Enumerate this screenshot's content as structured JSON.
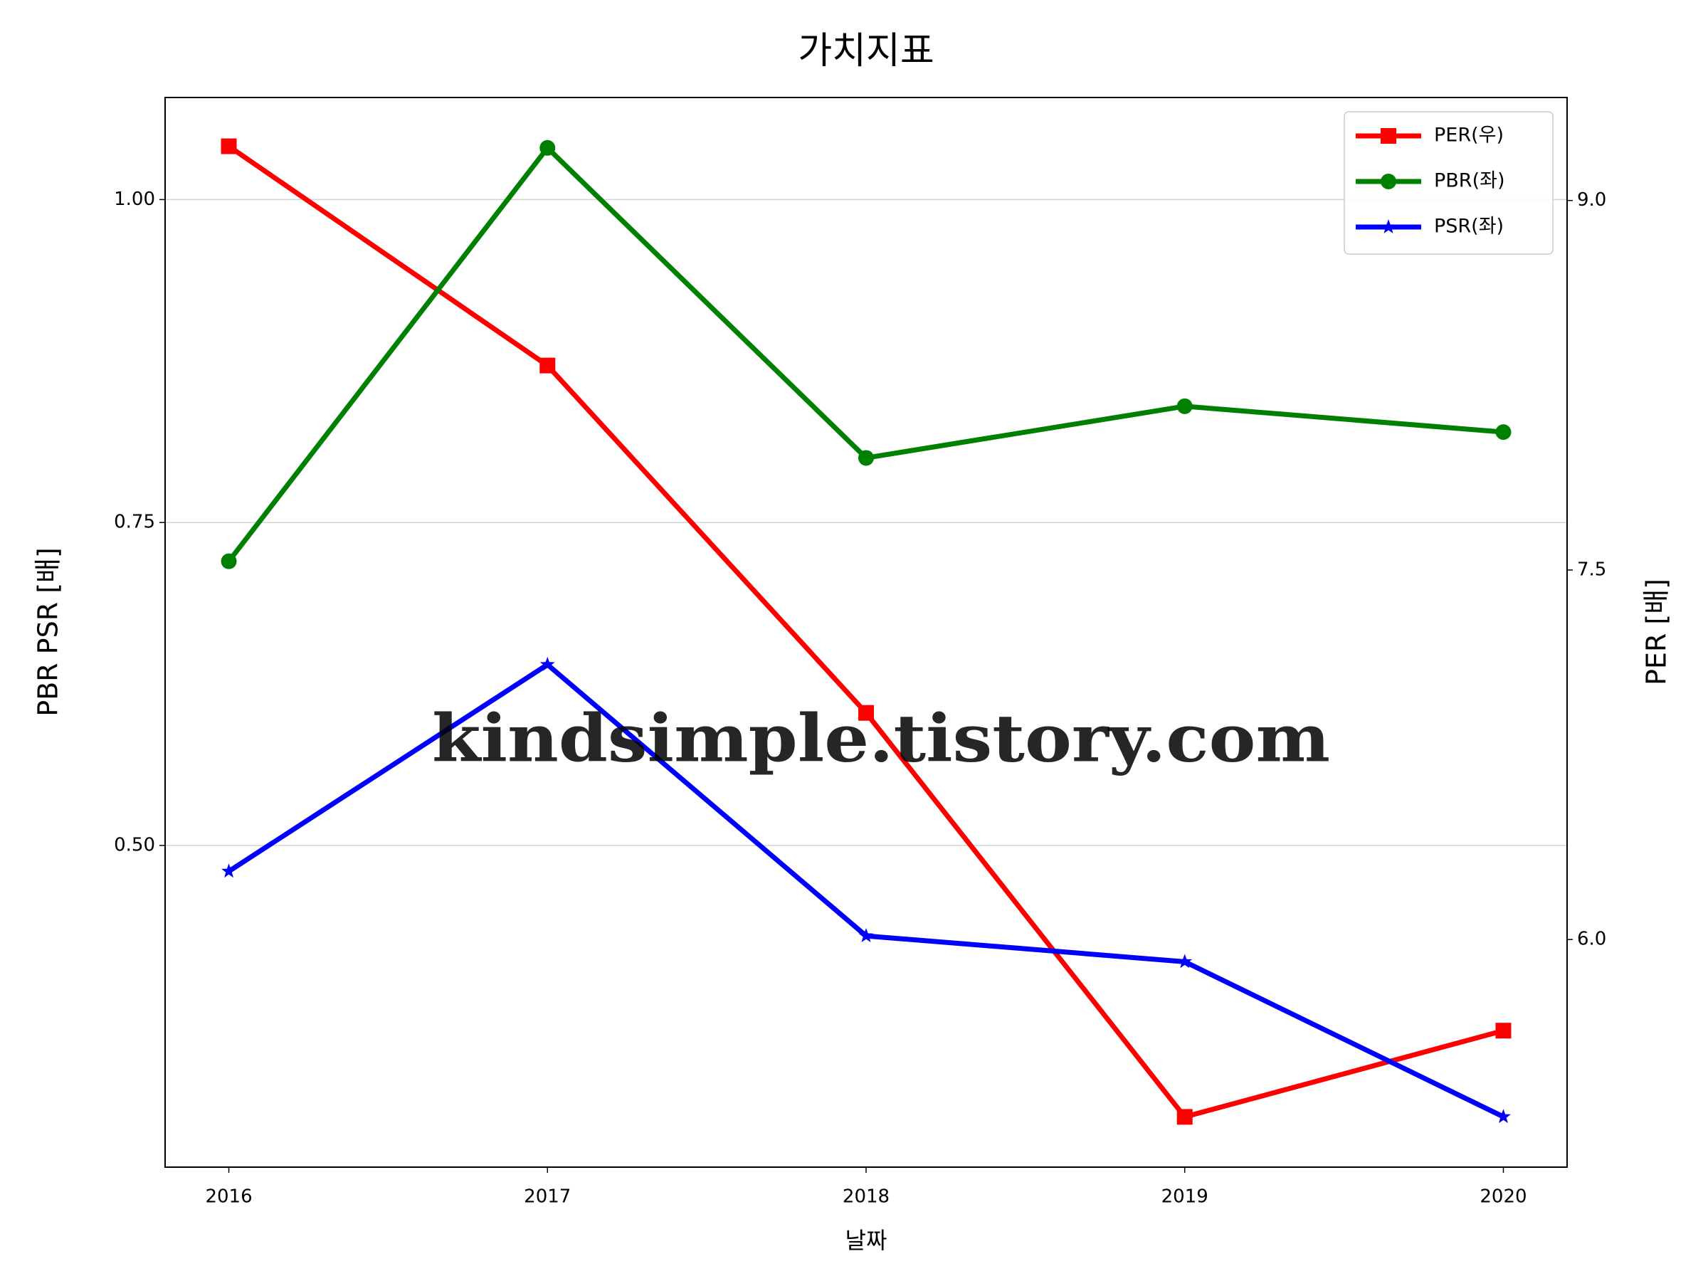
{
  "chart_data": {
    "type": "line",
    "title": "가치지표",
    "xlabel": "날짜",
    "ylabel": "PBR PSR [배]",
    "ylabel_color": "#008000",
    "y2label": "PER [배]",
    "y2label_color": "#ff0000",
    "watermark": "kindsimple.tistory.com",
    "x": [
      2016,
      2017,
      2018,
      2019,
      2020
    ],
    "xlim": [
      2015.8,
      2020.2
    ],
    "xticks": [
      2016,
      2017,
      2018,
      2019,
      2020
    ],
    "ylim": [
      0.251,
      1.079
    ],
    "yticks": [
      {
        "value": 0.5,
        "label": "0.50"
      },
      {
        "value": 0.75,
        "label": "0.75"
      },
      {
        "value": 1.0,
        "label": "1.00"
      }
    ],
    "y2lim": [
      5.076,
      9.418
    ],
    "y2ticks": [
      {
        "value": 6.0,
        "label": "6.0"
      },
      {
        "value": 7.5,
        "label": "7.5"
      },
      {
        "value": 9.0,
        "label": "9.0"
      }
    ],
    "grid": true,
    "legend": "upper right",
    "series": [
      {
        "name": "PER(우)",
        "color": "#ff0000",
        "marker": "square",
        "axis": "y2",
        "values": [
          9.22,
          8.33,
          6.92,
          5.28,
          5.63
        ]
      },
      {
        "name": "PBR(좌)",
        "color": "#008000",
        "marker": "circle",
        "values": [
          0.72,
          1.04,
          0.8,
          0.84,
          0.82
        ]
      },
      {
        "name": "PSR(좌)",
        "color": "#0000ff",
        "marker": "star",
        "values": [
          0.48,
          0.64,
          0.43,
          0.41,
          0.29
        ]
      }
    ]
  }
}
